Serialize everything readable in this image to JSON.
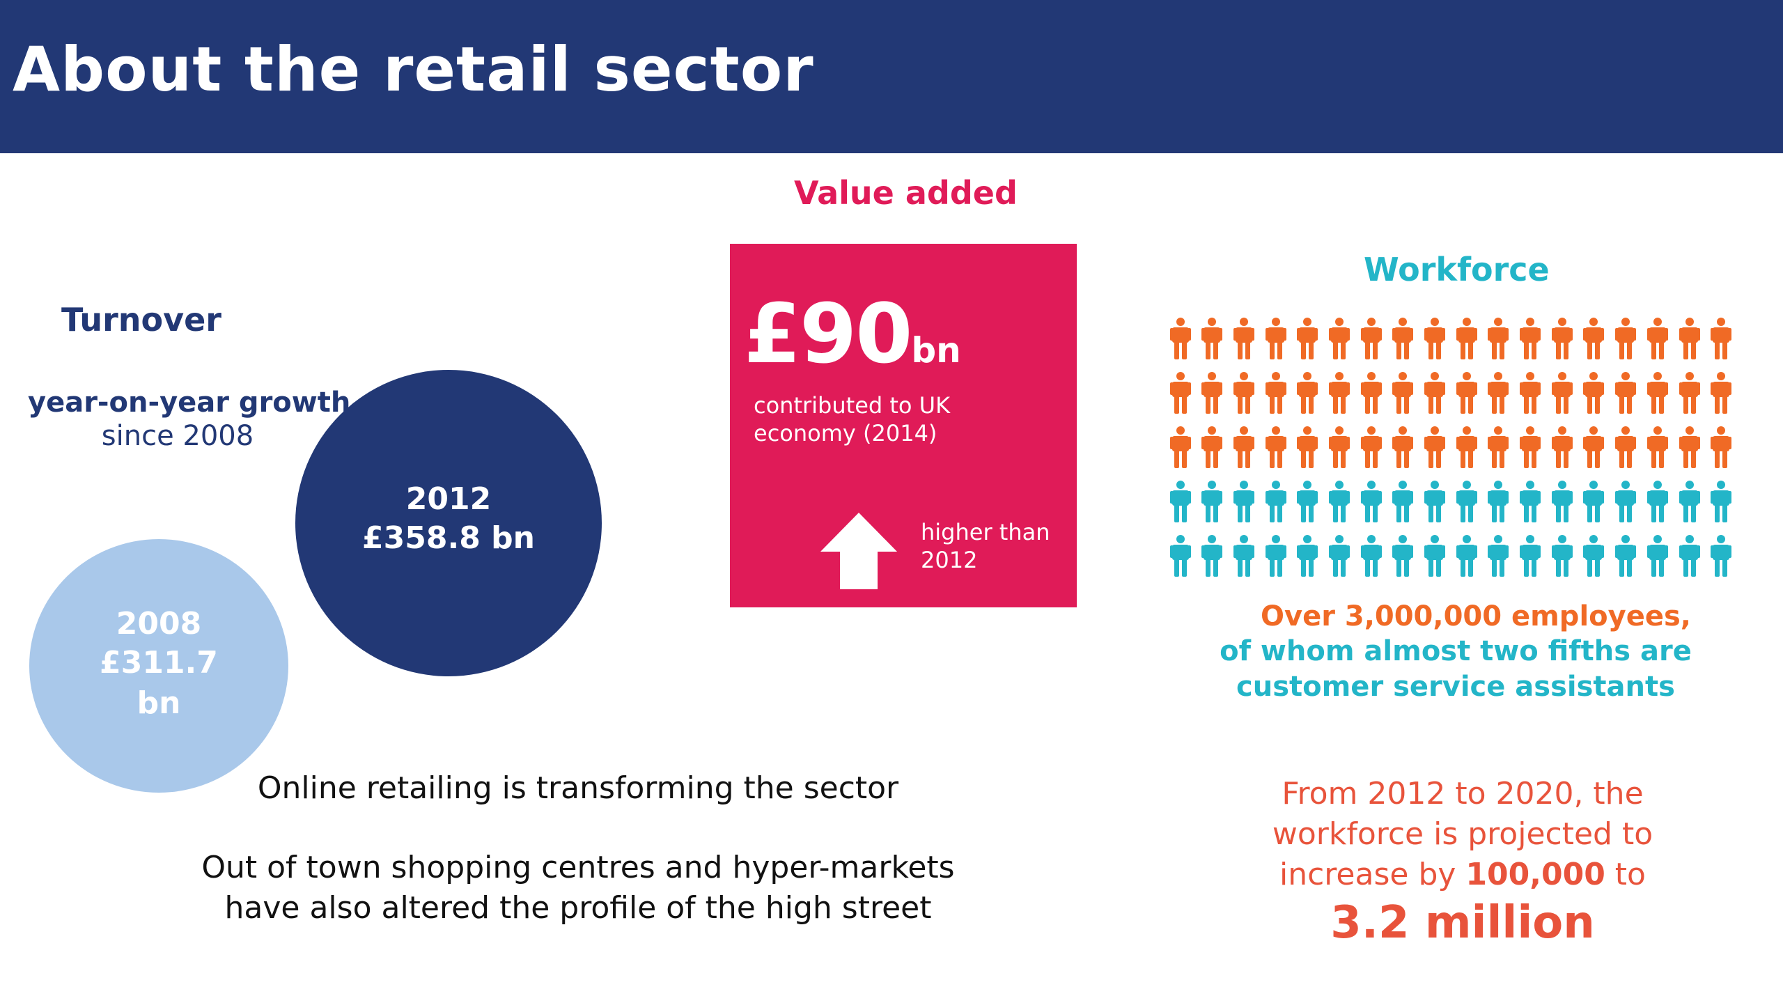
{
  "header": {
    "title": "About the retail sector"
  },
  "turnover": {
    "heading": "Turnover",
    "growth_label": "year-on-year growth",
    "growth_since": "since 2008",
    "circle_2012": {
      "year": "2012",
      "value": "£358.8 bn"
    },
    "circle_2008": {
      "year": "2008",
      "value": "£311.7",
      "unit": "bn"
    }
  },
  "value_added": {
    "heading": "Value added",
    "amount": "£90",
    "unit": "bn",
    "description_line1": "contributed to UK",
    "description_line2": "economy (2014)",
    "higher_line1": "higher than",
    "higher_line2": "2012",
    "icon": "up-arrow-icon"
  },
  "workforce": {
    "heading": "Workforce",
    "icon": "person-icon",
    "icon_rows_orange": 3,
    "icon_rows_teal": 2,
    "icons_per_row": 18,
    "line1": "Over 3,000,000 employees,",
    "line2": "of whom almost two fifths are",
    "line3": "customer service assistants"
  },
  "projection": {
    "line1": "From 2012 to 2020, the",
    "line2": "workforce is projected to",
    "line3_prefix": "increase by ",
    "line3_strong": "100,000",
    "line3_suffix": " to",
    "big": "3.2 million"
  },
  "notes": {
    "online": "Online retailing is transforming the sector",
    "outoftown_line1": "Out of town shopping centres and hyper-markets",
    "outoftown_line2": "have also altered the profile of the high street"
  },
  "colors": {
    "navy": "#223875",
    "light_blue": "#a9c8ea",
    "pink": "#e01b58",
    "orange": "#f06a25",
    "teal": "#23b5c8",
    "projection_red": "#e8533b"
  }
}
